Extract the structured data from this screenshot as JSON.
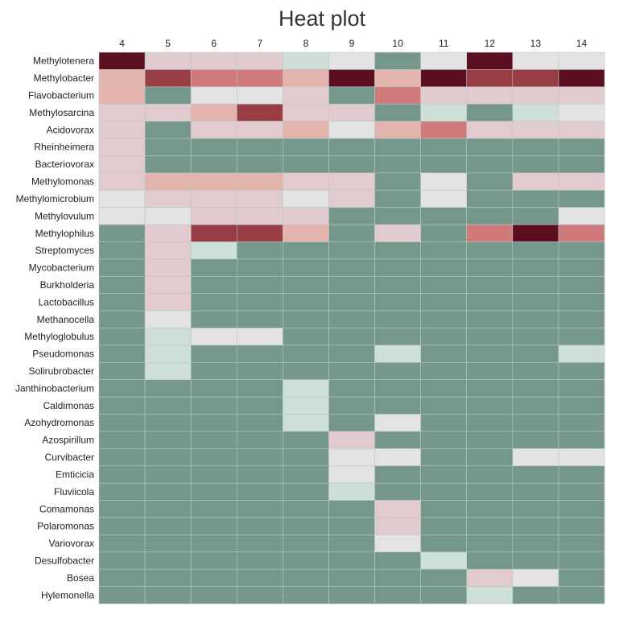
{
  "chart_data": {
    "type": "heatmap",
    "title": "Heat plot",
    "columns": [
      "4",
      "5",
      "6",
      "7",
      "8",
      "9",
      "10",
      "11",
      "12",
      "13",
      "14"
    ],
    "rows": [
      "Methylotenera",
      "Methylobacter",
      "Flavobacterium",
      "Methylosarcina",
      "Acidovorax",
      "Rheinheimera",
      "Bacteriovorax",
      "Methylomonas",
      "Methylomicrobium",
      "Methylovulum",
      "Methylophilus",
      "Streptomyces",
      "Mycobacterium",
      "Burkholderia",
      "Lactobacillus",
      "Methanocella",
      "Methyloglobulus",
      "Pseudomonas",
      "Solirubrobacter",
      "Janthinobacterium",
      "Caldimonas",
      "Azohydromonas",
      "Azospirillum",
      "Curvibacter",
      "Emticicia",
      "Fluviicola",
      "Comamonas",
      "Polaromonas",
      "Variovorax",
      "Desulfobacter",
      "Bosea",
      "Hylemonella"
    ],
    "levels": [
      [
        8,
        4,
        4,
        4,
        2,
        3,
        0,
        3,
        8,
        3,
        3
      ],
      [
        5,
        7,
        6,
        6,
        5,
        8,
        5,
        8,
        7,
        7,
        8
      ],
      [
        5,
        0,
        3,
        3,
        4,
        0,
        6,
        4,
        4,
        4,
        4
      ],
      [
        4,
        4,
        5,
        7,
        4,
        4,
        0,
        2,
        0,
        2,
        3
      ],
      [
        4,
        0,
        4,
        4,
        5,
        3,
        5,
        6,
        4,
        4,
        4
      ],
      [
        4,
        0,
        0,
        0,
        0,
        0,
        0,
        0,
        0,
        0,
        0
      ],
      [
        4,
        0,
        0,
        0,
        0,
        0,
        0,
        0,
        0,
        0,
        0
      ],
      [
        4,
        5,
        5,
        5,
        4,
        4,
        0,
        3,
        0,
        4,
        4
      ],
      [
        3,
        4,
        4,
        4,
        3,
        4,
        0,
        3,
        0,
        0,
        0
      ],
      [
        3,
        3,
        4,
        4,
        4,
        0,
        0,
        0,
        0,
        0,
        3
      ],
      [
        0,
        4,
        7,
        7,
        5,
        0,
        4,
        0,
        6,
        8,
        6
      ],
      [
        0,
        4,
        2,
        0,
        0,
        0,
        0,
        0,
        0,
        0,
        0
      ],
      [
        0,
        4,
        0,
        0,
        0,
        0,
        0,
        0,
        0,
        0,
        0
      ],
      [
        0,
        4,
        0,
        0,
        0,
        0,
        0,
        0,
        0,
        0,
        0
      ],
      [
        0,
        4,
        0,
        0,
        0,
        0,
        0,
        0,
        0,
        0,
        0
      ],
      [
        0,
        3,
        0,
        0,
        0,
        0,
        0,
        0,
        0,
        0,
        0
      ],
      [
        0,
        2,
        3,
        3,
        0,
        0,
        0,
        0,
        0,
        0,
        0
      ],
      [
        0,
        2,
        0,
        0,
        0,
        0,
        2,
        0,
        0,
        0,
        2
      ],
      [
        0,
        2,
        0,
        0,
        0,
        0,
        0,
        0,
        0,
        0,
        0
      ],
      [
        0,
        0,
        0,
        0,
        2,
        0,
        0,
        0,
        0,
        0,
        0
      ],
      [
        0,
        0,
        0,
        0,
        2,
        0,
        0,
        0,
        0,
        0,
        0
      ],
      [
        0,
        0,
        0,
        0,
        2,
        0,
        3,
        0,
        0,
        0,
        0
      ],
      [
        0,
        0,
        0,
        0,
        0,
        4,
        0,
        0,
        0,
        0,
        0
      ],
      [
        0,
        0,
        0,
        0,
        0,
        3,
        3,
        0,
        0,
        3,
        3
      ],
      [
        0,
        0,
        0,
        0,
        0,
        3,
        0,
        0,
        0,
        0,
        0
      ],
      [
        0,
        0,
        0,
        0,
        0,
        2,
        0,
        0,
        0,
        0,
        0
      ],
      [
        0,
        0,
        0,
        0,
        0,
        0,
        4,
        0,
        0,
        0,
        0
      ],
      [
        0,
        0,
        0,
        0,
        0,
        0,
        4,
        0,
        0,
        0,
        0
      ],
      [
        0,
        0,
        0,
        0,
        0,
        0,
        3,
        0,
        0,
        0,
        0
      ],
      [
        0,
        0,
        0,
        0,
        0,
        0,
        0,
        2,
        0,
        0,
        0
      ],
      [
        0,
        0,
        0,
        0,
        0,
        0,
        0,
        0,
        4,
        3,
        0
      ],
      [
        0,
        0,
        0,
        0,
        0,
        0,
        0,
        0,
        2,
        0,
        0
      ]
    ],
    "color_scale": [
      "#76978c",
      "#86a39a",
      "#cddfd6",
      "#e3e3e3",
      "#e2cbcf",
      "#e2b4ad",
      "#d07a7b",
      "#973d43",
      "#5b0e1f"
    ],
    "grid": true,
    "legend": "none"
  }
}
